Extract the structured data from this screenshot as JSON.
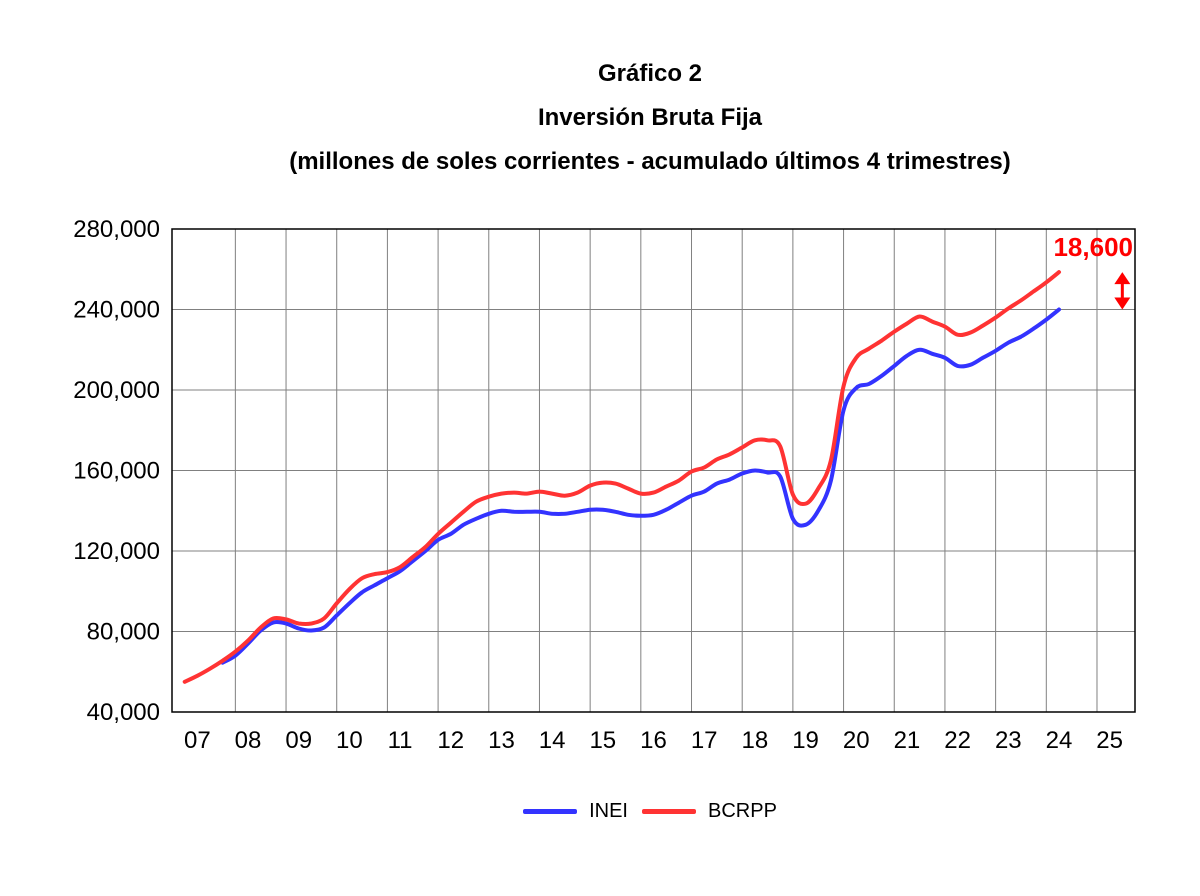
{
  "chart_data": {
    "type": "line",
    "title": "Gráfico 2",
    "subtitle": "Inversión Bruta Fija",
    "subtitle2": "(millones de soles corrientes - acumulado últimos 4 trimestres)",
    "xlabel": "",
    "ylabel": "",
    "ylim": [
      40000,
      280000
    ],
    "y_ticks": [
      40000,
      80000,
      120000,
      160000,
      200000,
      240000,
      280000
    ],
    "y_tick_labels": [
      "40,000",
      "80,000",
      "120,000",
      "160,000",
      "200,000",
      "240,000",
      "280,000"
    ],
    "x_tick_labels": [
      "07",
      "08",
      "09",
      "10",
      "11",
      "12",
      "13",
      "14",
      "15",
      "16",
      "17",
      "18",
      "19",
      "20",
      "21",
      "22",
      "23",
      "24",
      "25"
    ],
    "grid": true,
    "legend_position": "bottom",
    "annotation": {
      "text": "18,600",
      "color": "#ff0000",
      "x": 2025.5,
      "y_top": 258600,
      "y_bottom": 240000
    },
    "series": [
      {
        "name": "INEI",
        "color": "#3333ff",
        "points": [
          [
            2007.75,
            64500
          ],
          [
            2008.0,
            68000
          ],
          [
            2008.25,
            74000
          ],
          [
            2008.5,
            80500
          ],
          [
            2008.75,
            84500
          ],
          [
            2009.0,
            84000
          ],
          [
            2009.25,
            81500
          ],
          [
            2009.5,
            80500
          ],
          [
            2009.75,
            82000
          ],
          [
            2010.0,
            88000
          ],
          [
            2010.25,
            94000
          ],
          [
            2010.5,
            99500
          ],
          [
            2010.75,
            103000
          ],
          [
            2011.0,
            106500
          ],
          [
            2011.25,
            110000
          ],
          [
            2011.5,
            115000
          ],
          [
            2011.75,
            120000
          ],
          [
            2012.0,
            125500
          ],
          [
            2012.25,
            128500
          ],
          [
            2012.5,
            133000
          ],
          [
            2012.75,
            136000
          ],
          [
            2013.0,
            138500
          ],
          [
            2013.25,
            140000
          ],
          [
            2013.5,
            139500
          ],
          [
            2013.75,
            139500
          ],
          [
            2014.0,
            139500
          ],
          [
            2014.25,
            138500
          ],
          [
            2014.5,
            138500
          ],
          [
            2014.75,
            139500
          ],
          [
            2015.0,
            140500
          ],
          [
            2015.25,
            140500
          ],
          [
            2015.5,
            139500
          ],
          [
            2015.75,
            138000
          ],
          [
            2016.0,
            137500
          ],
          [
            2016.25,
            138000
          ],
          [
            2016.5,
            140500
          ],
          [
            2016.75,
            144000
          ],
          [
            2017.0,
            147500
          ],
          [
            2017.25,
            149500
          ],
          [
            2017.5,
            153500
          ],
          [
            2017.75,
            155500
          ],
          [
            2018.0,
            158500
          ],
          [
            2018.25,
            160000
          ],
          [
            2018.5,
            159000
          ],
          [
            2018.75,
            157000
          ],
          [
            2019.0,
            136000
          ],
          [
            2019.25,
            133000
          ],
          [
            2019.5,
            140000
          ],
          [
            2019.75,
            155000
          ],
          [
            2020.0,
            190000
          ],
          [
            2020.25,
            201000
          ],
          [
            2020.5,
            203000
          ],
          [
            2020.75,
            207000
          ],
          [
            2021.0,
            212000
          ],
          [
            2021.25,
            217000
          ],
          [
            2021.5,
            220000
          ],
          [
            2021.75,
            218000
          ],
          [
            2022.0,
            216000
          ],
          [
            2022.25,
            212000
          ],
          [
            2022.5,
            212500
          ],
          [
            2022.75,
            216000
          ],
          [
            2023.0,
            219500
          ],
          [
            2023.25,
            223500
          ],
          [
            2023.5,
            226500
          ],
          [
            2023.75,
            230500
          ],
          [
            2024.0,
            235000
          ],
          [
            2024.25,
            240000
          ]
        ]
      },
      {
        "name": "BCRPP",
        "color": "#ff3333",
        "points": [
          [
            2007.0,
            55000
          ],
          [
            2007.25,
            58000
          ],
          [
            2007.5,
            61500
          ],
          [
            2007.75,
            65500
          ],
          [
            2008.0,
            70000
          ],
          [
            2008.25,
            75500
          ],
          [
            2008.5,
            82000
          ],
          [
            2008.75,
            86500
          ],
          [
            2009.0,
            86000
          ],
          [
            2009.25,
            84000
          ],
          [
            2009.5,
            84000
          ],
          [
            2009.75,
            86500
          ],
          [
            2010.0,
            94000
          ],
          [
            2010.25,
            101000
          ],
          [
            2010.5,
            106500
          ],
          [
            2010.75,
            108500
          ],
          [
            2011.0,
            109500
          ],
          [
            2011.25,
            112000
          ],
          [
            2011.5,
            117000
          ],
          [
            2011.75,
            122000
          ],
          [
            2012.0,
            128500
          ],
          [
            2012.25,
            134000
          ],
          [
            2012.5,
            139500
          ],
          [
            2012.75,
            144500
          ],
          [
            2013.0,
            147000
          ],
          [
            2013.25,
            148500
          ],
          [
            2013.5,
            149000
          ],
          [
            2013.75,
            148500
          ],
          [
            2014.0,
            149500
          ],
          [
            2014.25,
            148500
          ],
          [
            2014.5,
            147500
          ],
          [
            2014.75,
            149000
          ],
          [
            2015.0,
            152500
          ],
          [
            2015.25,
            154000
          ],
          [
            2015.5,
            153500
          ],
          [
            2015.75,
            151000
          ],
          [
            2016.0,
            148500
          ],
          [
            2016.25,
            149000
          ],
          [
            2016.5,
            152000
          ],
          [
            2016.75,
            155000
          ],
          [
            2017.0,
            159500
          ],
          [
            2017.25,
            161500
          ],
          [
            2017.5,
            165500
          ],
          [
            2017.75,
            168000
          ],
          [
            2018.0,
            171500
          ],
          [
            2018.25,
            175000
          ],
          [
            2018.5,
            175000
          ],
          [
            2018.75,
            172000
          ],
          [
            2019.0,
            148000
          ],
          [
            2019.25,
            143500
          ],
          [
            2019.5,
            151000
          ],
          [
            2019.75,
            165000
          ],
          [
            2020.0,
            202000
          ],
          [
            2020.25,
            216000
          ],
          [
            2020.5,
            220500
          ],
          [
            2020.75,
            224500
          ],
          [
            2021.0,
            229000
          ],
          [
            2021.25,
            233000
          ],
          [
            2021.5,
            236500
          ],
          [
            2021.75,
            234000
          ],
          [
            2022.0,
            231500
          ],
          [
            2022.25,
            227500
          ],
          [
            2022.5,
            228500
          ],
          [
            2022.75,
            232000
          ],
          [
            2023.0,
            236000
          ],
          [
            2023.25,
            240500
          ],
          [
            2023.5,
            244500
          ],
          [
            2023.75,
            249000
          ],
          [
            2024.0,
            253500
          ],
          [
            2024.25,
            258600
          ]
        ]
      }
    ]
  }
}
